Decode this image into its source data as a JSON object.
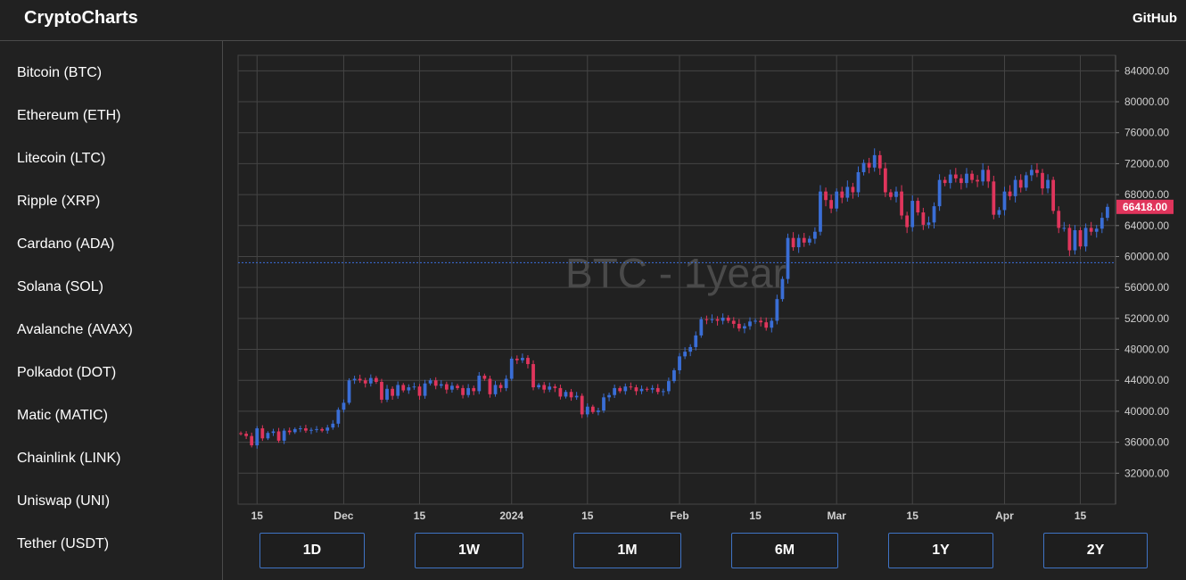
{
  "header": {
    "brand": "CryptoCharts",
    "github_link": "GitHub"
  },
  "sidebar": {
    "items": [
      {
        "label": "Bitcoin (BTC)"
      },
      {
        "label": "Ethereum (ETH)"
      },
      {
        "label": "Litecoin (LTC)"
      },
      {
        "label": "Ripple (XRP)"
      },
      {
        "label": "Cardano (ADA)"
      },
      {
        "label": "Solana (SOL)"
      },
      {
        "label": "Avalanche (AVAX)"
      },
      {
        "label": "Polkadot (DOT)"
      },
      {
        "label": "Matic (MATIC)"
      },
      {
        "label": "Chainlink (LINK)"
      },
      {
        "label": "Uniswap (UNI)"
      },
      {
        "label": "Tether (USDT)"
      }
    ]
  },
  "range_buttons": [
    "1D",
    "1W",
    "1M",
    "6M",
    "1Y",
    "2Y"
  ],
  "colors": {
    "up": "#3a6ed6",
    "down": "#e0355c",
    "grid": "#454545",
    "axis_text": "#d0d0d0",
    "price_line": "#3b6fe0",
    "price_tag": "#e0355c",
    "button_border": "#3f73c4"
  },
  "chart_data": {
    "type": "candlestick",
    "watermark": "BTC - 1year",
    "y_axis": {
      "min": 28000,
      "max": 86000,
      "ticks": [
        "32000.00",
        "36000.00",
        "40000.00",
        "44000.00",
        "48000.00",
        "52000.00",
        "56000.00",
        "60000.00",
        "64000.00",
        "68000.00",
        "72000.00",
        "76000.00",
        "80000.00",
        "84000.00"
      ]
    },
    "x_axis": {
      "start": "2023-11-12",
      "end": "2024-04-21",
      "ticks": [
        {
          "date": "2023-11-15",
          "label": "15"
        },
        {
          "date": "2023-12-01",
          "label": "Dec"
        },
        {
          "date": "2023-12-15",
          "label": "15"
        },
        {
          "date": "2024-01-01",
          "label": "2024"
        },
        {
          "date": "2024-01-15",
          "label": "15"
        },
        {
          "date": "2024-02-01",
          "label": "Feb"
        },
        {
          "date": "2024-02-15",
          "label": "15"
        },
        {
          "date": "2024-03-01",
          "label": "Mar"
        },
        {
          "date": "2024-03-15",
          "label": "15"
        },
        {
          "date": "2024-04-01",
          "label": "Apr"
        },
        {
          "date": "2024-04-15",
          "label": "15"
        }
      ]
    },
    "last_price": 66418,
    "last_price_label": "66418.00",
    "horizontal_line": 59200,
    "close_series": {
      "start": "2023-11-12",
      "values": [
        37100,
        36800,
        35600,
        37800,
        36500,
        37200,
        37400,
        36200,
        37500,
        37300,
        37700,
        37800,
        37500,
        37600,
        37700,
        37500,
        37900,
        38400,
        40200,
        41100,
        44000,
        44200,
        44000,
        43600,
        44300,
        43800,
        41500,
        42900,
        42000,
        43400,
        42700,
        43100,
        43200,
        42000,
        43600,
        44000,
        43300,
        43500,
        42800,
        43300,
        43000,
        42100,
        43000,
        42600,
        44600,
        44200,
        42200,
        43400,
        43000,
        44200,
        46800,
        46600,
        46900,
        46100,
        43100,
        43400,
        42800,
        43200,
        43000,
        41900,
        42500,
        41800,
        42000,
        39600,
        40600,
        39900,
        40100,
        41800,
        42100,
        43000,
        42600,
        43200,
        43100,
        42600,
        42900,
        42800,
        43000,
        42500,
        42600,
        43900,
        45300,
        47100,
        47700,
        48300,
        49800,
        51900,
        51800,
        51900,
        51700,
        52100,
        51700,
        51300,
        50700,
        51000,
        51600,
        51700,
        51500,
        50800,
        51700,
        54500,
        57100,
        62400,
        61200,
        62400,
        61800,
        62300,
        63200,
        68400,
        67300,
        66200,
        68400,
        67600,
        69000,
        68300,
        70900,
        72100,
        71500,
        73100,
        71400,
        68300,
        67700,
        68400,
        65300,
        63800,
        67200,
        65700,
        64100,
        64400,
        66500,
        69900,
        69500,
        70600,
        70100,
        69500,
        70700,
        69900,
        69700,
        71200,
        69700,
        65400,
        66000,
        68400,
        67800,
        69900,
        68900,
        70500,
        71200,
        70800,
        68800,
        69900,
        65900,
        63700,
        63700,
        60800,
        63400,
        61300,
        63700,
        63200,
        63600,
        65000,
        66418
      ]
    }
  }
}
